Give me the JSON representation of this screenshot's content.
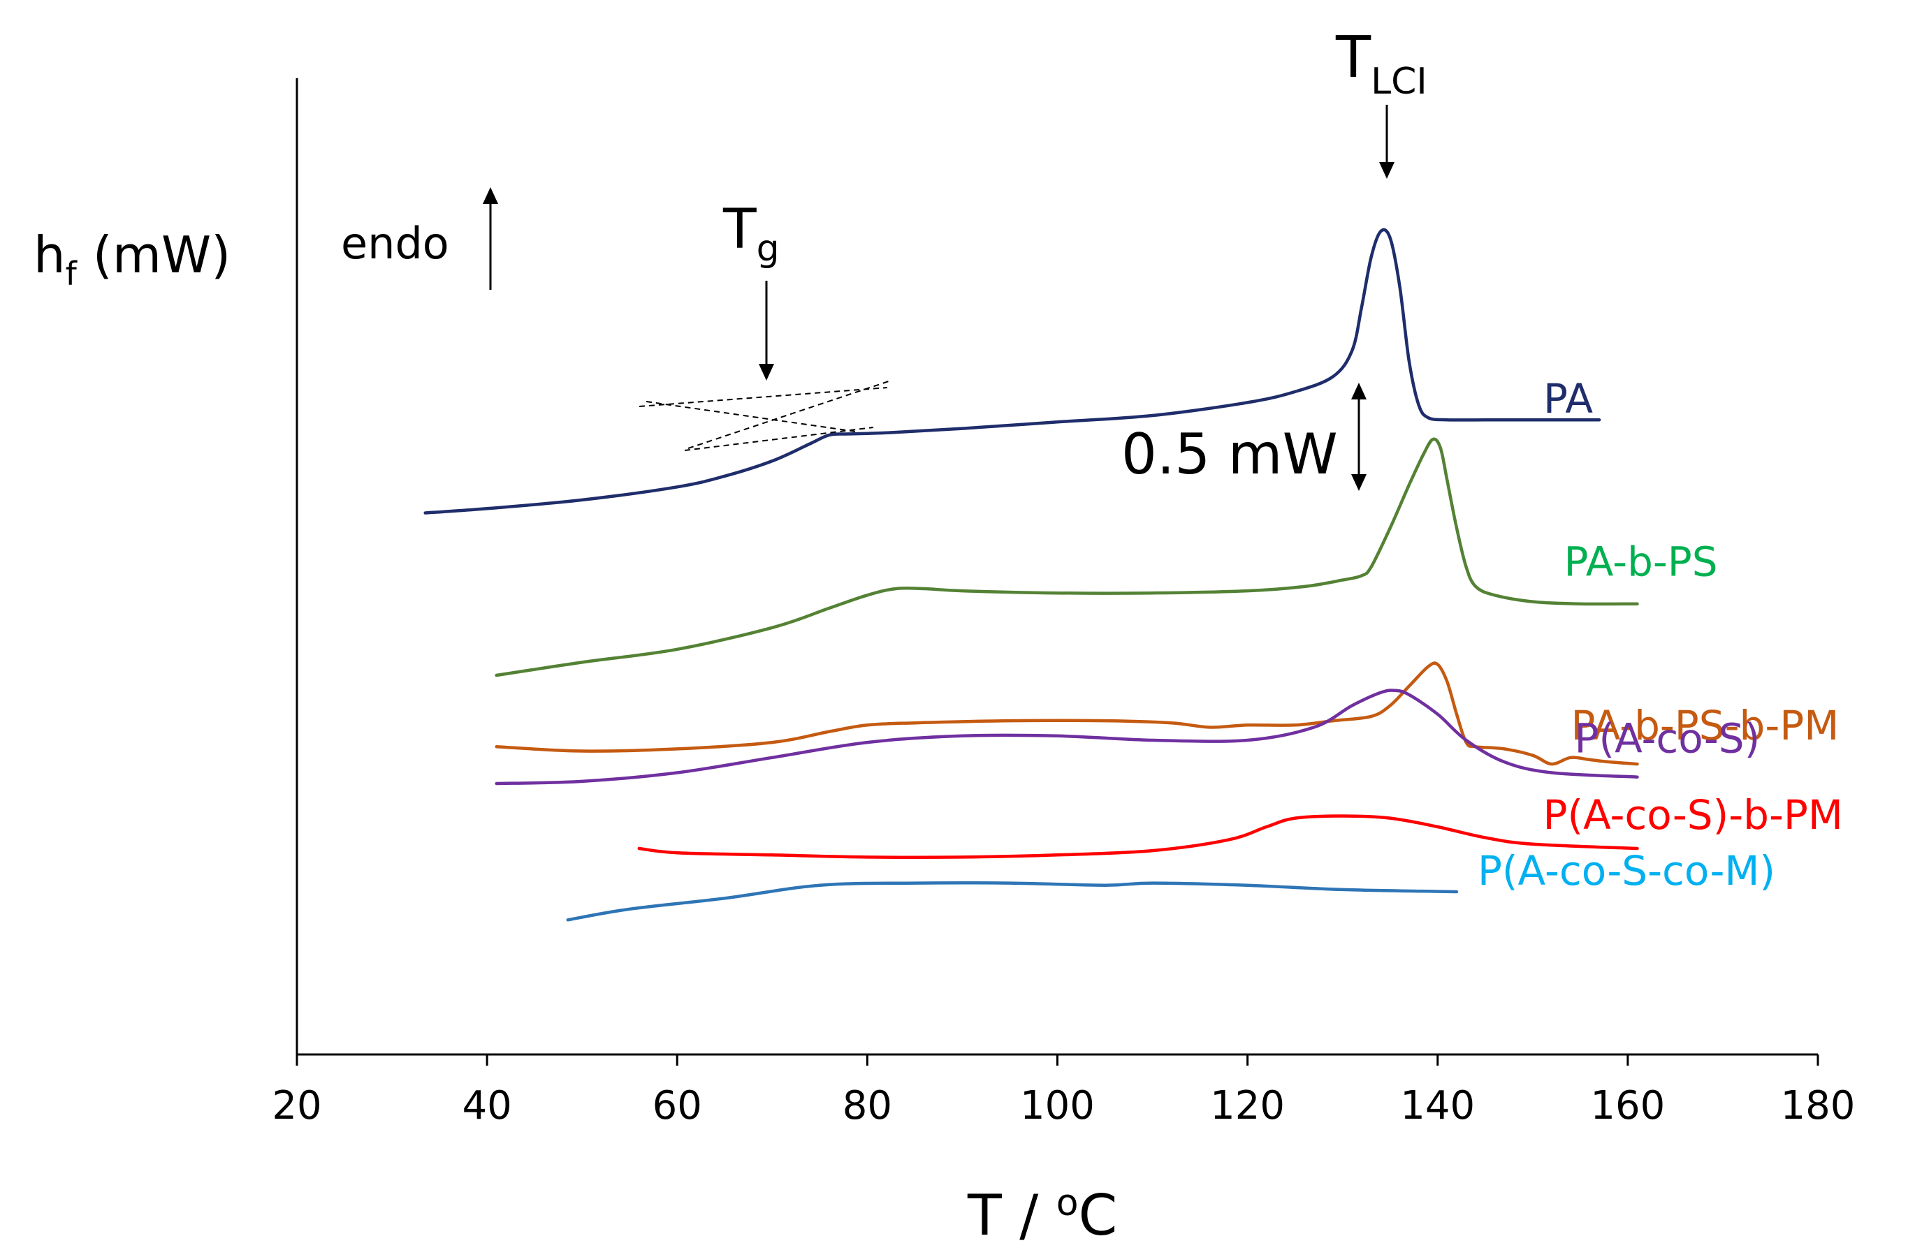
{
  "chart_data": {
    "type": "line",
    "title": "",
    "xlabel_main": "T / ",
    "xlabel_super": "o",
    "xlabel_unit": "C",
    "ylabel_main": "h",
    "ylabel_sub": "f",
    "ylabel_unit": " (mW)",
    "xlim": [
      20,
      180
    ],
    "xticks": [
      20,
      40,
      60,
      80,
      100,
      120,
      140,
      160,
      180
    ],
    "y_ticks_shown": false,
    "legend": "inline labels at right end of each curve",
    "series": [
      {
        "name": "PA",
        "color": "#1f2d6b",
        "label_color": "#1f2d6b",
        "offset_mW": 1.55,
        "points": [
          [
            33.5,
            0.0
          ],
          [
            40,
            0.02
          ],
          [
            50,
            0.06
          ],
          [
            60,
            0.12
          ],
          [
            65,
            0.17
          ],
          [
            70,
            0.24
          ],
          [
            74,
            0.32
          ],
          [
            76,
            0.36
          ],
          [
            78,
            0.365
          ],
          [
            82,
            0.37
          ],
          [
            90,
            0.39
          ],
          [
            100,
            0.42
          ],
          [
            110,
            0.45
          ],
          [
            120,
            0.51
          ],
          [
            125,
            0.56
          ],
          [
            129,
            0.63
          ],
          [
            131,
            0.75
          ],
          [
            132,
            0.95
          ],
          [
            133,
            1.18
          ],
          [
            134,
            1.3
          ],
          [
            135,
            1.27
          ],
          [
            136,
            1.05
          ],
          [
            137,
            0.7
          ],
          [
            138,
            0.5
          ],
          [
            139,
            0.44
          ],
          [
            141,
            0.43
          ],
          [
            145,
            0.43
          ],
          [
            150,
            0.43
          ],
          [
            157,
            0.43
          ]
        ]
      },
      {
        "name": "PA-b-PS",
        "color": "#548235",
        "label_color": "#00b050",
        "offset_mW": 0.8,
        "points": [
          [
            41,
            0.0
          ],
          [
            50,
            0.06
          ],
          [
            60,
            0.12
          ],
          [
            70,
            0.22
          ],
          [
            76,
            0.31
          ],
          [
            80,
            0.37
          ],
          [
            83,
            0.4
          ],
          [
            86,
            0.4
          ],
          [
            90,
            0.39
          ],
          [
            100,
            0.38
          ],
          [
            110,
            0.38
          ],
          [
            120,
            0.39
          ],
          [
            126,
            0.41
          ],
          [
            130,
            0.44
          ],
          [
            132,
            0.46
          ],
          [
            133,
            0.5
          ],
          [
            135,
            0.68
          ],
          [
            137,
            0.88
          ],
          [
            138.5,
            1.02
          ],
          [
            139.5,
            1.09
          ],
          [
            140.3,
            1.05
          ],
          [
            141,
            0.9
          ],
          [
            142,
            0.68
          ],
          [
            143,
            0.5
          ],
          [
            144,
            0.41
          ],
          [
            146,
            0.37
          ],
          [
            150,
            0.34
          ],
          [
            155,
            0.33
          ],
          [
            161,
            0.33
          ]
        ]
      },
      {
        "name": "PA-b-PS-b-PM",
        "color": "#c55a11",
        "label_color": "#c55a11",
        "offset_mW": 0.47,
        "points": [
          [
            41,
            0.0
          ],
          [
            50,
            -0.02
          ],
          [
            60,
            -0.01
          ],
          [
            70,
            0.02
          ],
          [
            76,
            0.07
          ],
          [
            80,
            0.1
          ],
          [
            85,
            0.11
          ],
          [
            95,
            0.12
          ],
          [
            105,
            0.12
          ],
          [
            112,
            0.11
          ],
          [
            116,
            0.09
          ],
          [
            120,
            0.1
          ],
          [
            125,
            0.1
          ],
          [
            129,
            0.12
          ],
          [
            133,
            0.14
          ],
          [
            135,
            0.19
          ],
          [
            137,
            0.28
          ],
          [
            139,
            0.37
          ],
          [
            140,
            0.38
          ],
          [
            141,
            0.3
          ],
          [
            142,
            0.15
          ],
          [
            143,
            0.02
          ],
          [
            144,
            0.0
          ],
          [
            147,
            -0.01
          ],
          [
            150,
            -0.04
          ],
          [
            152,
            -0.08
          ],
          [
            154,
            -0.05
          ],
          [
            156,
            -0.06
          ],
          [
            158,
            -0.07
          ],
          [
            161,
            -0.08
          ]
        ]
      },
      {
        "name": "P(A-co-S)",
        "color": "#7030a0",
        "label_color": "#7030a0",
        "offset_mW": 0.3,
        "points": [
          [
            41,
            0.0
          ],
          [
            50,
            0.01
          ],
          [
            60,
            0.05
          ],
          [
            70,
            0.12
          ],
          [
            80,
            0.19
          ],
          [
            90,
            0.22
          ],
          [
            100,
            0.22
          ],
          [
            110,
            0.2
          ],
          [
            120,
            0.2
          ],
          [
            127,
            0.26
          ],
          [
            131,
            0.36
          ],
          [
            134,
            0.42
          ],
          [
            135.5,
            0.43
          ],
          [
            137,
            0.41
          ],
          [
            140,
            0.32
          ],
          [
            143,
            0.2
          ],
          [
            147,
            0.1
          ],
          [
            152,
            0.05
          ],
          [
            161,
            0.03
          ]
        ]
      },
      {
        "name": "P(A-co-S)-b-PM",
        "color": "#ff0000",
        "label_color": "#ff0000",
        "offset_mW": 0.0,
        "points": [
          [
            56,
            0.0
          ],
          [
            60,
            -0.02
          ],
          [
            70,
            -0.03
          ],
          [
            80,
            -0.04
          ],
          [
            90,
            -0.04
          ],
          [
            100,
            -0.03
          ],
          [
            110,
            -0.01
          ],
          [
            118,
            0.04
          ],
          [
            122,
            0.1
          ],
          [
            125,
            0.14
          ],
          [
            130,
            0.15
          ],
          [
            135,
            0.14
          ],
          [
            140,
            0.1
          ],
          [
            145,
            0.05
          ],
          [
            150,
            0.02
          ],
          [
            161,
            0.0
          ]
        ]
      },
      {
        "name": "P(A-co-S-co-M)",
        "color": "#2e75b6",
        "label_color": "#00b0f0",
        "offset_mW": -0.33,
        "points": [
          [
            48.5,
            0.0
          ],
          [
            55,
            0.05
          ],
          [
            65,
            0.1
          ],
          [
            75,
            0.16
          ],
          [
            85,
            0.17
          ],
          [
            95,
            0.17
          ],
          [
            105,
            0.16
          ],
          [
            110,
            0.17
          ],
          [
            120,
            0.16
          ],
          [
            130,
            0.14
          ],
          [
            142,
            0.13
          ]
        ]
      }
    ],
    "annotations": {
      "tg_label": "T",
      "tg_sub": "g",
      "tg_x": 69,
      "tlci_label": "T",
      "tlci_sub": "LCI",
      "tlci_x": 134.5,
      "endo_label": "endo",
      "scale_bar_label": "0.5 mW",
      "scale_bar_mW": 0.5
    }
  }
}
